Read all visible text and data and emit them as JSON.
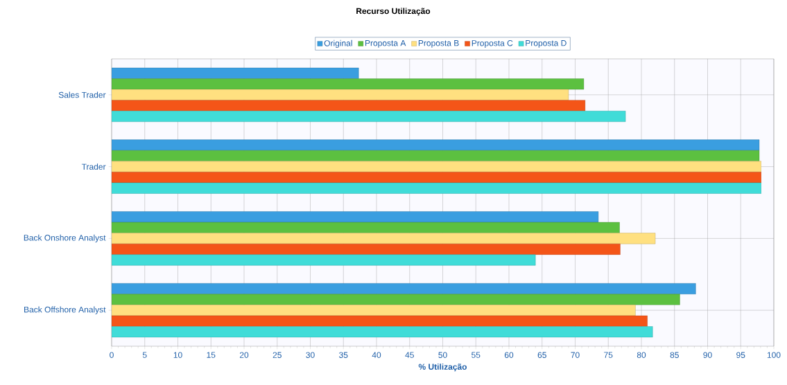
{
  "chart_data": {
    "type": "bar",
    "orientation": "horizontal",
    "title": "Recurso Utilização",
    "xlabel": "% Utilização",
    "categories": [
      "Sales Trader",
      "Trader",
      "Back Onshore Analyst",
      "Back Offshore Analyst"
    ],
    "series": [
      {
        "name": "Original",
        "color": "#3a9ee0",
        "values": [
          37.3,
          97.8,
          73.5,
          88.2
        ]
      },
      {
        "name": "Proposta A",
        "color": "#5cc040",
        "values": [
          71.3,
          97.8,
          76.7,
          85.8
        ]
      },
      {
        "name": "Proposta B",
        "color": "#ffe080",
        "values": [
          69.0,
          98.1,
          82.1,
          79.1
        ]
      },
      {
        "name": "Proposta C",
        "color": "#f45518",
        "values": [
          71.5,
          98.1,
          76.8,
          80.9
        ]
      },
      {
        "name": "Proposta D",
        "color": "#40dcd8",
        "values": [
          77.6,
          98.1,
          64.0,
          81.7
        ]
      }
    ],
    "xlim": [
      0,
      100
    ],
    "xticks": [
      0,
      5,
      10,
      15,
      20,
      25,
      30,
      35,
      40,
      45,
      50,
      55,
      60,
      65,
      70,
      75,
      80,
      85,
      90,
      95,
      100
    ],
    "grid": true,
    "legend": "top"
  }
}
